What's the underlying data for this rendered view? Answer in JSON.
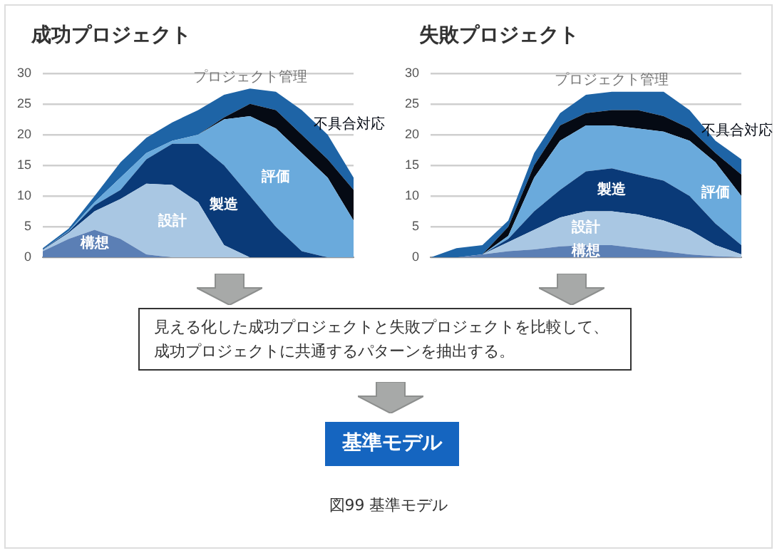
{
  "chart_data": [
    {
      "type": "area",
      "title": "成功プロジェクト",
      "stacked": true,
      "categories": [
        null,
        null,
        null,
        null,
        null,
        null,
        null,
        null,
        null,
        null,
        null,
        null,
        null
      ],
      "ylim": [
        0,
        30
      ],
      "yticks": [
        0,
        5,
        10,
        15,
        20,
        25,
        30
      ],
      "grid": "y",
      "tick_labels": "y",
      "series": [
        {
          "name": "構想",
          "color": "#5b7fb5",
          "values": [
            1,
            3,
            4.5,
            3,
            0.5,
            0,
            0,
            0,
            0,
            0,
            0,
            0,
            0
          ]
        },
        {
          "name": "設計",
          "color": "#a9c7e3",
          "values": [
            0.2,
            1,
            3,
            6.5,
            11.5,
            11.8,
            9,
            2,
            0,
            0,
            0,
            0,
            0
          ]
        },
        {
          "name": "製造",
          "color": "#0a3a78",
          "values": [
            0.1,
            0.2,
            1,
            1.5,
            4,
            6.7,
            9.5,
            13,
            10,
            5,
            1,
            0,
            0
          ]
        },
        {
          "name": "評価",
          "color": "#6aaadc",
          "values": [
            0,
            0.1,
            0.5,
            2,
            1,
            0.5,
            1.5,
            7.5,
            13,
            16,
            16,
            13,
            6
          ]
        },
        {
          "name": "不具合対応",
          "color": "#050a14",
          "values": [
            0,
            0,
            0,
            0,
            0,
            0,
            0,
            0.3,
            2,
            3,
            3,
            3,
            5
          ]
        },
        {
          "name": "プロジェクト管理",
          "color": "#1e64a6",
          "values": [
            0.2,
            0.4,
            1,
            2.5,
            2.5,
            3,
            4,
            3.7,
            2.5,
            3,
            4,
            4,
            2
          ]
        }
      ]
    },
    {
      "type": "area",
      "title": "失敗プロジェクト",
      "stacked": true,
      "categories": [
        null,
        null,
        null,
        null,
        null,
        null,
        null,
        null,
        null,
        null,
        null,
        null,
        null
      ],
      "ylim": [
        0,
        30
      ],
      "yticks": [
        0,
        5,
        10,
        15,
        20,
        25,
        30
      ],
      "grid": "y",
      "tick_labels": "y",
      "series": [
        {
          "name": "構想",
          "color": "#5b7fb5",
          "values": [
            0,
            0,
            0.5,
            1,
            1.3,
            1.8,
            2,
            2,
            1.5,
            1,
            0.5,
            0.2,
            0
          ]
        },
        {
          "name": "設計",
          "color": "#a9c7e3",
          "values": [
            0,
            0,
            0,
            1.5,
            3.2,
            4.7,
            5.5,
            5.5,
            5.5,
            5,
            4,
            1.8,
            0.5
          ]
        },
        {
          "name": "製造",
          "color": "#0a3a78",
          "values": [
            0,
            0,
            0,
            0.5,
            3,
            4.5,
            6.5,
            7,
            6.5,
            6.5,
            5.5,
            3.5,
            1.5
          ]
        },
        {
          "name": "評価",
          "color": "#6aaadc",
          "values": [
            0,
            0,
            0,
            0.5,
            5.5,
            8,
            7.5,
            7,
            7.5,
            8,
            9,
            10,
            8
          ]
        },
        {
          "name": "不具合対応",
          "color": "#050a14",
          "values": [
            0,
            0,
            0,
            1.5,
            2,
            2.5,
            2,
            2.5,
            3,
            2.5,
            2,
            1.5,
            3.5
          ]
        },
        {
          "name": "プロジェクト管理",
          "color": "#1e64a6",
          "values": [
            0,
            1.5,
            1.5,
            1,
            2,
            2,
            3,
            3,
            3,
            4,
            3,
            2,
            2.5
          ]
        }
      ]
    },
    {
      "type": "other",
      "annotations": [
        "見える化した成功プロジェクトと失敗プロジェクトを比較して、成功プロジェクトに共通するパターンを抽出する。",
        "基準モデル",
        "図99 基準モデル"
      ]
    }
  ]
}
